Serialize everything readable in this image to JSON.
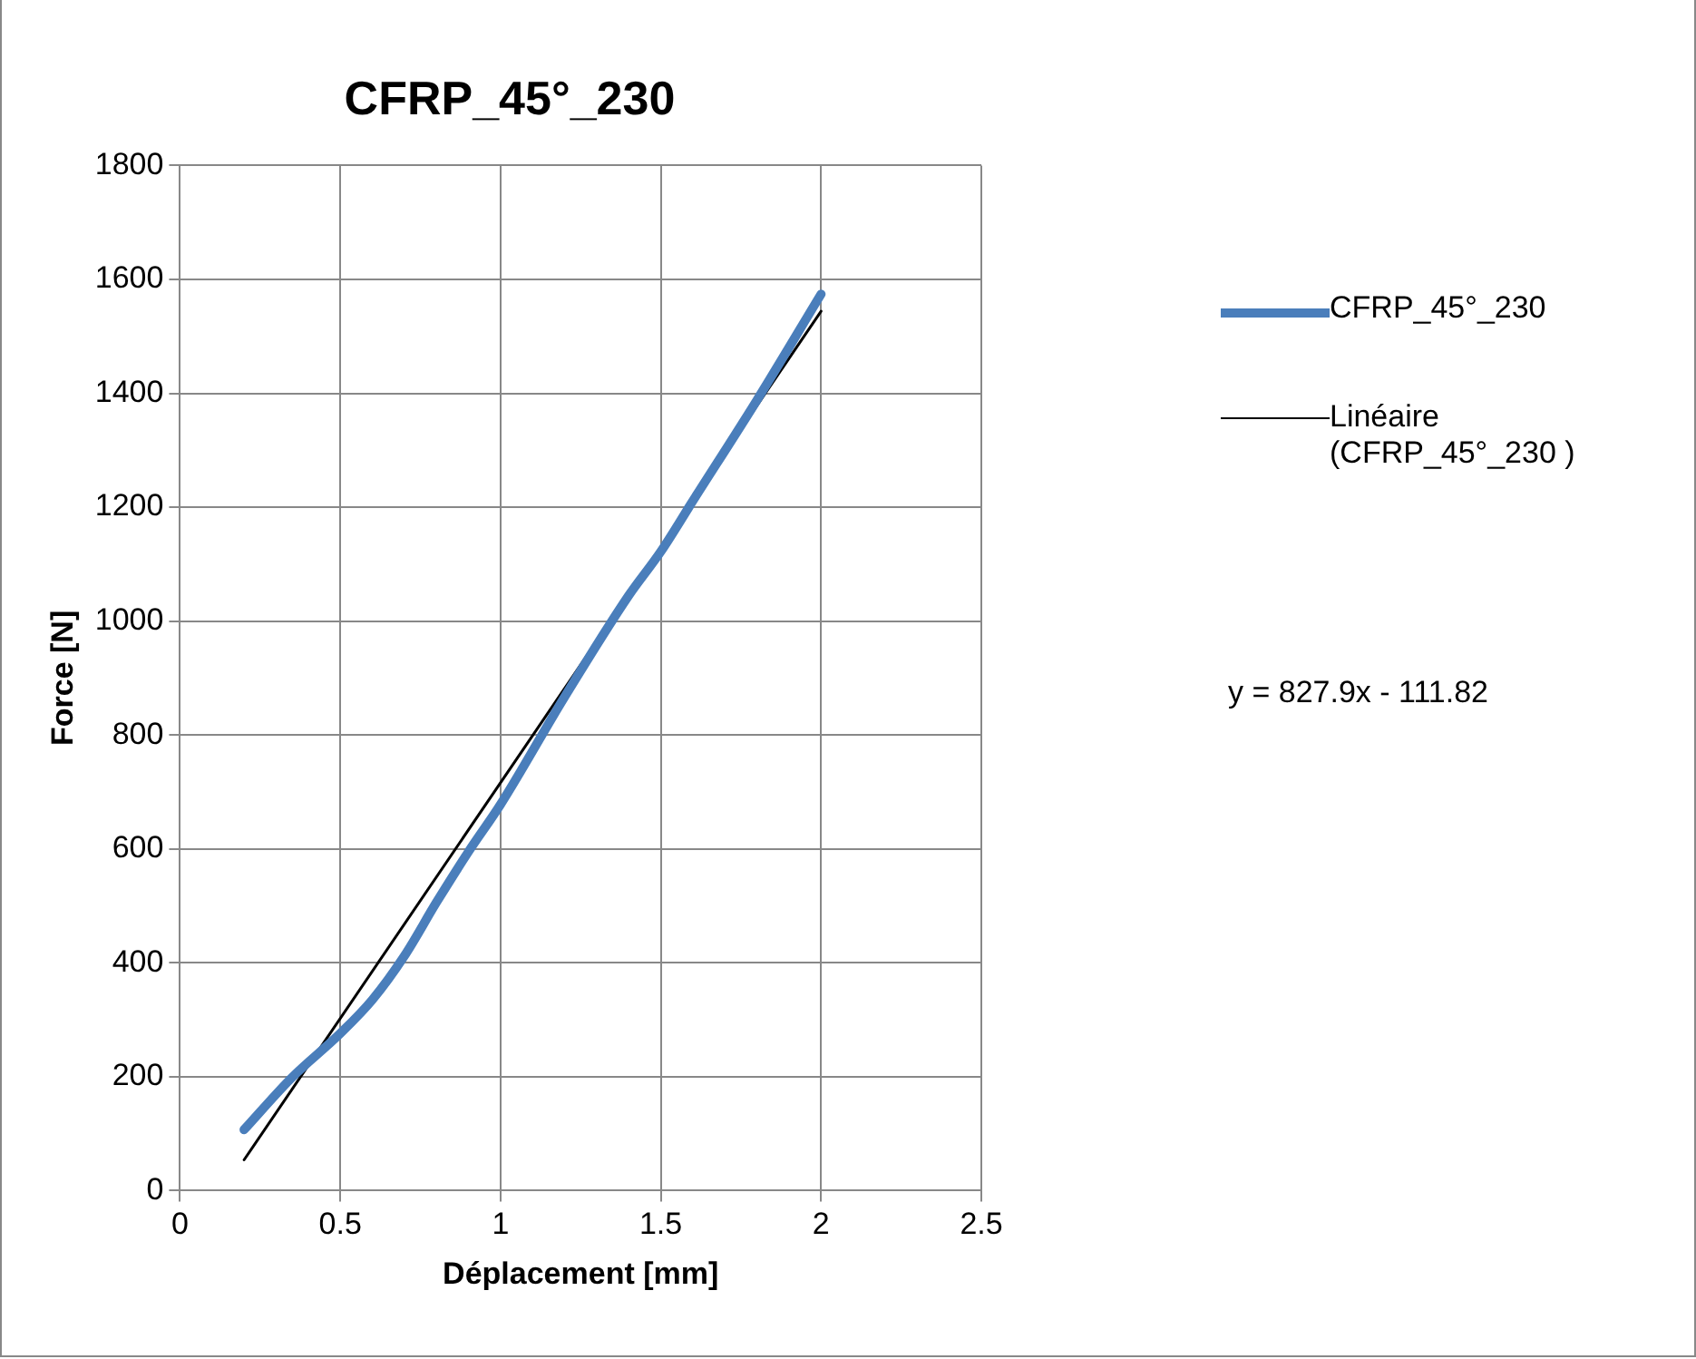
{
  "chart_data": {
    "type": "line",
    "title": "CFRP_45°_230",
    "xlabel": "Déplacement [mm]",
    "ylabel": "Force [N]",
    "xlim": [
      0,
      2.5
    ],
    "xticks": [
      0,
      0.5,
      1,
      1.5,
      2,
      2.5
    ],
    "ylim": [
      0,
      1800
    ],
    "yticks": [
      0,
      200,
      400,
      600,
      800,
      1000,
      1200,
      1400,
      1600,
      1800
    ],
    "grid": true,
    "legend": "right",
    "marker": "none",
    "line_style": "solid",
    "series": [
      {
        "name": "CFRP_45°_230",
        "color": "#4a7ebb",
        "x": [
          0.2,
          0.35,
          0.5,
          0.6,
          0.7,
          0.8,
          0.9,
          1.0,
          1.2,
          1.4,
          1.5,
          1.6,
          1.8,
          2.0
        ],
        "values": [
          107,
          199,
          276,
          335,
          412,
          506,
          595,
          678,
          867,
          1045,
          1122,
          1211,
          1388,
          1574
        ]
      },
      {
        "name": "Linéaire (CFRP_45°_230 )",
        "color": "#000000",
        "x": [
          0.2,
          2.0
        ],
        "values": [
          54,
          1544
        ]
      }
    ],
    "annotations": [
      "y = 827.9x - 111.82"
    ]
  }
}
